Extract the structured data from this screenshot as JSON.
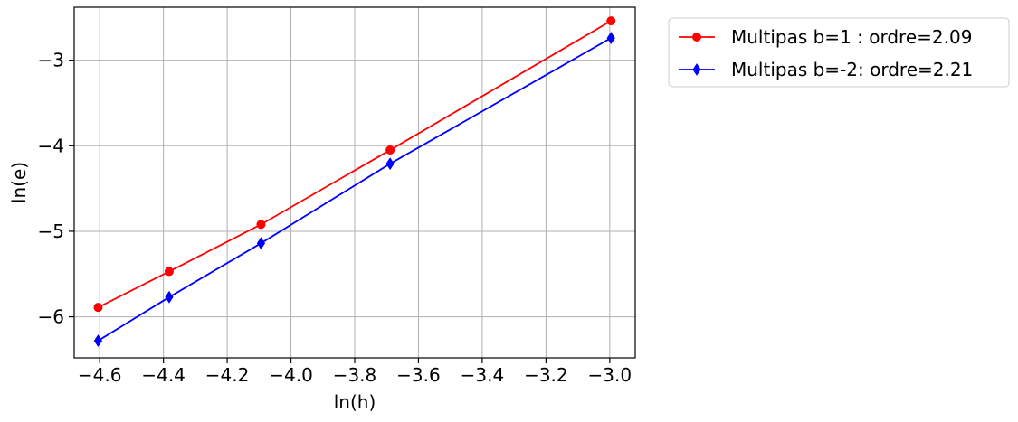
{
  "chart_data": {
    "type": "line",
    "title": "",
    "xlabel": "ln(h)",
    "ylabel": "ln(e)",
    "xlim": [
      -4.68,
      -2.92
    ],
    "ylim": [
      -6.48,
      -2.38
    ],
    "xticks": [
      -4.6,
      -4.4,
      -4.2,
      -4.0,
      -3.8,
      -3.6,
      -3.4,
      -3.2,
      -3.0
    ],
    "yticks": [
      -6,
      -5,
      -4,
      -3
    ],
    "xtick_labels": [
      "−4.6",
      "−4.4",
      "−4.2",
      "−4.0",
      "−3.8",
      "−3.6",
      "−3.4",
      "−3.2",
      "−3.0"
    ],
    "ytick_labels": [
      "−6",
      "−5",
      "−4",
      "−3"
    ],
    "grid": true,
    "legend_position": "outside-top-right",
    "series": [
      {
        "name": "Multipas b=1 : ordre=2.09",
        "color": "#ff0000",
        "marker": "circle",
        "x": [
          -4.605,
          -4.382,
          -4.094,
          -3.689,
          -2.996
        ],
        "y": [
          -5.89,
          -5.47,
          -4.92,
          -4.05,
          -2.54
        ]
      },
      {
        "name": "Multipas b=-2: ordre=2.21",
        "color": "#0000ff",
        "marker": "diamond",
        "x": [
          -4.605,
          -4.382,
          -4.094,
          -3.689,
          -2.996
        ],
        "y": [
          -6.28,
          -5.77,
          -5.14,
          -4.21,
          -2.74
        ]
      }
    ]
  }
}
